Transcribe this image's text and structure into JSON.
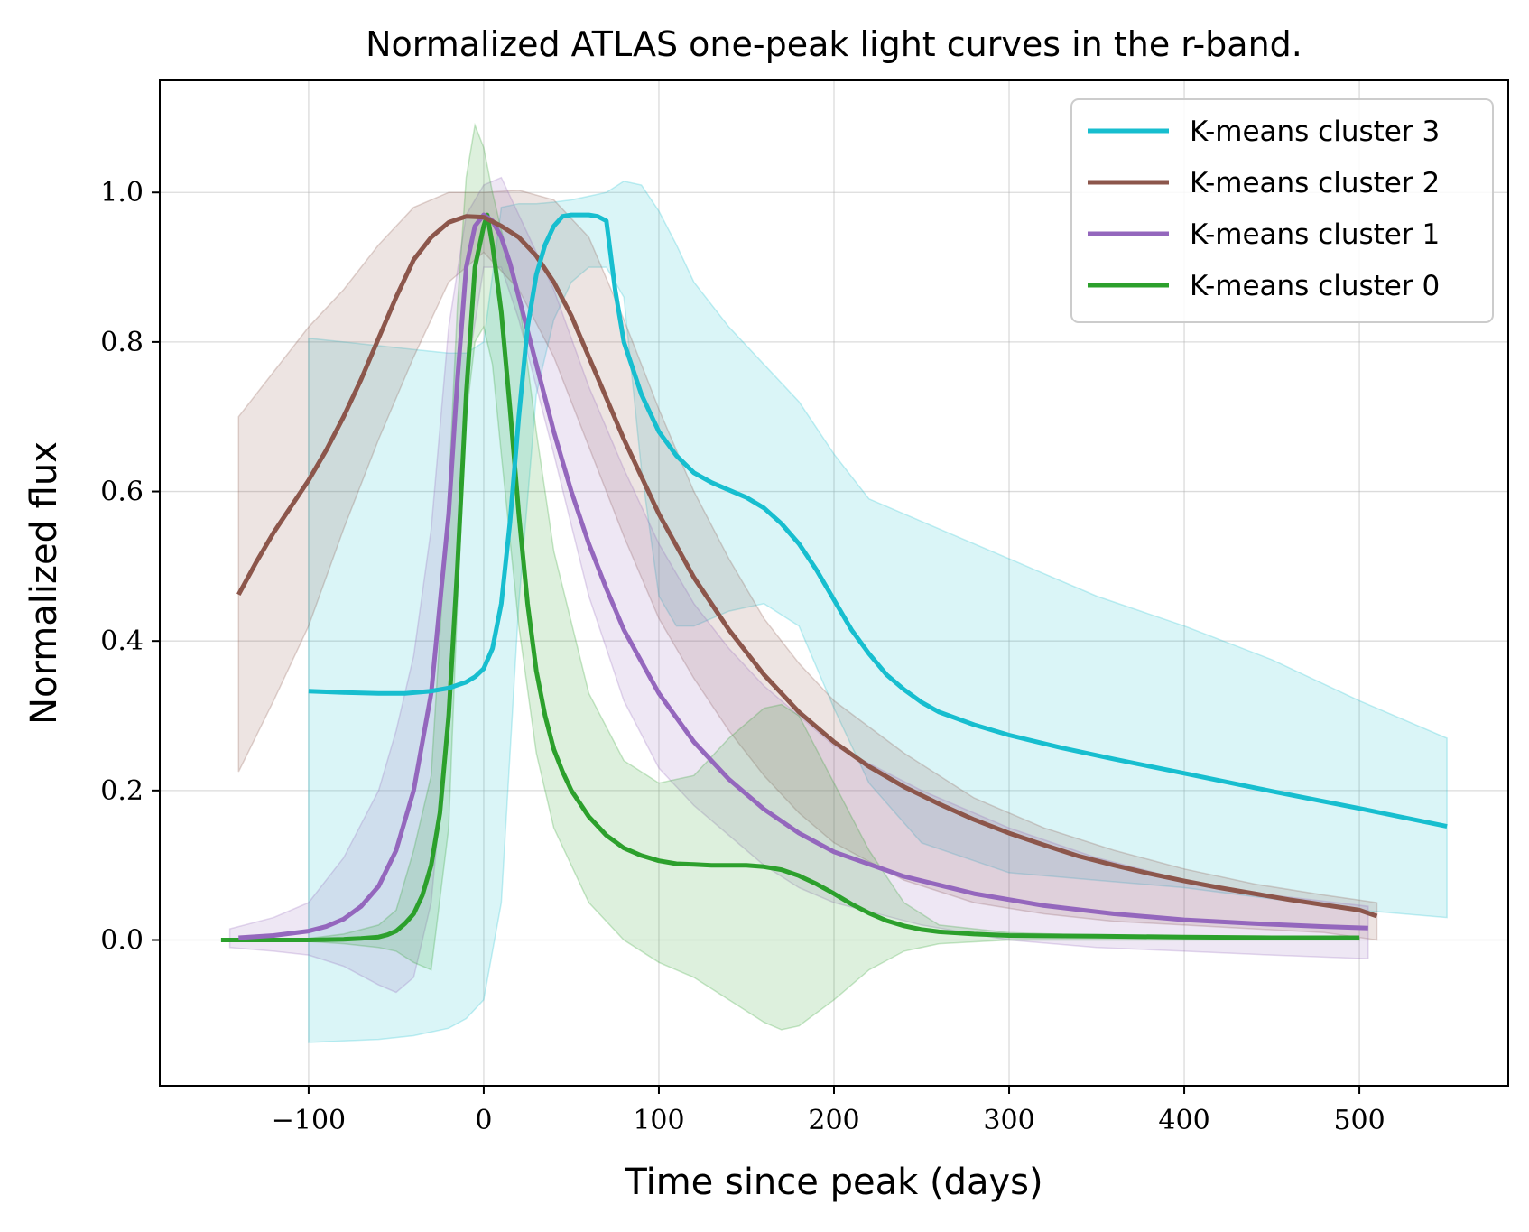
{
  "chart_data": {
    "type": "line",
    "title": "Normalized ATLAS one-peak light curves in the r-band.",
    "xlabel": "Time since peak (days)",
    "ylabel": "Normalized flux",
    "xlim": [
      -185,
      585
    ],
    "ylim": [
      -0.195,
      1.15
    ],
    "xticks": [
      -100,
      0,
      100,
      200,
      300,
      400,
      500
    ],
    "xtick_labels": [
      "−100",
      "0",
      "100",
      "200",
      "300",
      "400",
      "500"
    ],
    "yticks": [
      0.0,
      0.2,
      0.4,
      0.6,
      0.8,
      1.0
    ],
    "ytick_labels": [
      "0.0",
      "0.2",
      "0.4",
      "0.6",
      "0.8",
      "1.0"
    ],
    "grid": true,
    "legend_position": "top-right",
    "series": [
      {
        "name": "K-means cluster 3",
        "color": "#17becf",
        "x": [
          -100,
          -80,
          -60,
          -45,
          -30,
          -20,
          -10,
          -5,
          0,
          5,
          10,
          15,
          20,
          25,
          30,
          35,
          40,
          45,
          50,
          55,
          60,
          65,
          70,
          75,
          80,
          90,
          100,
          110,
          120,
          130,
          140,
          150,
          160,
          170,
          180,
          190,
          200,
          210,
          220,
          230,
          240,
          250,
          260,
          280,
          300,
          330,
          360,
          400,
          450,
          500,
          550
        ],
        "y": [
          0.333,
          0.331,
          0.33,
          0.33,
          0.333,
          0.337,
          0.345,
          0.352,
          0.363,
          0.39,
          0.45,
          0.56,
          0.7,
          0.82,
          0.89,
          0.93,
          0.955,
          0.968,
          0.97,
          0.97,
          0.97,
          0.968,
          0.962,
          0.87,
          0.8,
          0.73,
          0.68,
          0.648,
          0.625,
          0.612,
          0.602,
          0.592,
          0.578,
          0.557,
          0.53,
          0.495,
          0.455,
          0.415,
          0.383,
          0.355,
          0.335,
          0.318,
          0.305,
          0.288,
          0.274,
          0.257,
          0.242,
          0.223,
          0.199,
          0.176,
          0.152
        ],
        "band_x": [
          -100,
          -80,
          -60,
          -40,
          -20,
          -10,
          0,
          10,
          20,
          30,
          40,
          50,
          60,
          70,
          80,
          90,
          100,
          110,
          120,
          140,
          160,
          180,
          200,
          220,
          250,
          300,
          350,
          400,
          450,
          500,
          550
        ],
        "band_lo": [
          -0.137,
          -0.135,
          -0.133,
          -0.128,
          -0.118,
          -0.105,
          -0.08,
          0.05,
          0.45,
          0.73,
          0.83,
          0.88,
          0.9,
          0.9,
          0.86,
          0.63,
          0.46,
          0.42,
          0.42,
          0.44,
          0.45,
          0.42,
          0.31,
          0.21,
          0.13,
          0.09,
          0.08,
          0.07,
          0.055,
          0.04,
          0.03
        ],
        "band_hi": [
          0.805,
          0.8,
          0.795,
          0.79,
          0.785,
          0.785,
          0.8,
          0.98,
          0.985,
          0.985,
          0.987,
          0.99,
          0.995,
          1.0,
          1.015,
          1.01,
          0.975,
          0.93,
          0.88,
          0.82,
          0.77,
          0.72,
          0.65,
          0.59,
          0.56,
          0.51,
          0.46,
          0.42,
          0.375,
          0.32,
          0.27
        ]
      },
      {
        "name": "K-means cluster 2",
        "color": "#8c564b",
        "x": [
          -140,
          -130,
          -120,
          -110,
          -100,
          -90,
          -80,
          -70,
          -60,
          -50,
          -40,
          -30,
          -20,
          -10,
          0,
          10,
          20,
          30,
          40,
          50,
          60,
          70,
          80,
          100,
          120,
          140,
          160,
          180,
          200,
          220,
          240,
          260,
          280,
          300,
          320,
          340,
          360,
          380,
          400,
          420,
          440,
          460,
          480,
          500,
          510
        ],
        "y": [
          0.462,
          0.505,
          0.545,
          0.58,
          0.615,
          0.655,
          0.7,
          0.75,
          0.805,
          0.86,
          0.91,
          0.94,
          0.96,
          0.968,
          0.967,
          0.955,
          0.94,
          0.915,
          0.88,
          0.835,
          0.78,
          0.725,
          0.67,
          0.57,
          0.485,
          0.415,
          0.355,
          0.305,
          0.265,
          0.232,
          0.205,
          0.182,
          0.161,
          0.143,
          0.127,
          0.112,
          0.1,
          0.089,
          0.079,
          0.07,
          0.062,
          0.054,
          0.047,
          0.04,
          0.032
        ],
        "band_x": [
          -140,
          -120,
          -100,
          -80,
          -60,
          -40,
          -20,
          0,
          20,
          40,
          60,
          80,
          100,
          120,
          140,
          160,
          180,
          200,
          240,
          280,
          320,
          360,
          400,
          440,
          480,
          510
        ],
        "band_lo": [
          0.225,
          0.32,
          0.42,
          0.55,
          0.67,
          0.78,
          0.88,
          0.92,
          0.87,
          0.78,
          0.66,
          0.54,
          0.43,
          0.35,
          0.28,
          0.22,
          0.17,
          0.13,
          0.08,
          0.05,
          0.035,
          0.025,
          0.02,
          0.015,
          0.01,
          0.0
        ],
        "band_hi": [
          0.7,
          0.76,
          0.82,
          0.87,
          0.93,
          0.98,
          1.0,
          1.0,
          1.003,
          0.99,
          0.94,
          0.83,
          0.71,
          0.6,
          0.51,
          0.43,
          0.37,
          0.32,
          0.25,
          0.19,
          0.15,
          0.12,
          0.095,
          0.075,
          0.06,
          0.05
        ]
      },
      {
        "name": "K-means cluster 1",
        "color": "#9467bd",
        "x": [
          -140,
          -120,
          -100,
          -90,
          -80,
          -70,
          -60,
          -50,
          -40,
          -30,
          -20,
          -15,
          -10,
          -5,
          0,
          5,
          10,
          15,
          20,
          30,
          40,
          50,
          60,
          70,
          80,
          100,
          120,
          140,
          160,
          180,
          200,
          240,
          280,
          320,
          360,
          400,
          440,
          480,
          505
        ],
        "y": [
          0.003,
          0.006,
          0.012,
          0.018,
          0.028,
          0.045,
          0.072,
          0.12,
          0.2,
          0.33,
          0.57,
          0.75,
          0.9,
          0.955,
          0.97,
          0.962,
          0.94,
          0.905,
          0.86,
          0.77,
          0.68,
          0.6,
          0.53,
          0.47,
          0.415,
          0.33,
          0.265,
          0.215,
          0.175,
          0.143,
          0.118,
          0.085,
          0.062,
          0.046,
          0.035,
          0.027,
          0.022,
          0.018,
          0.016
        ],
        "band_x": [
          -145,
          -120,
          -100,
          -80,
          -60,
          -50,
          -40,
          -30,
          -20,
          -10,
          0,
          10,
          20,
          40,
          60,
          80,
          100,
          120,
          140,
          160,
          180,
          200,
          250,
          300,
          350,
          400,
          450,
          505
        ],
        "band_lo": [
          -0.01,
          -0.015,
          -0.02,
          -0.035,
          -0.06,
          -0.07,
          -0.05,
          0.05,
          0.3,
          0.75,
          0.9,
          0.9,
          0.83,
          0.65,
          0.46,
          0.32,
          0.23,
          0.18,
          0.14,
          0.1,
          0.07,
          0.05,
          0.02,
          0.0,
          -0.01,
          -0.015,
          -0.02,
          -0.025
        ],
        "band_hi": [
          0.015,
          0.03,
          0.05,
          0.11,
          0.2,
          0.28,
          0.38,
          0.55,
          0.82,
          0.97,
          1.01,
          1.02,
          0.97,
          0.87,
          0.74,
          0.63,
          0.53,
          0.45,
          0.39,
          0.34,
          0.3,
          0.26,
          0.2,
          0.15,
          0.11,
          0.08,
          0.06,
          0.045
        ]
      },
      {
        "name": "K-means cluster 0",
        "color": "#2ca02c",
        "x": [
          -150,
          -120,
          -100,
          -80,
          -70,
          -60,
          -55,
          -50,
          -45,
          -40,
          -35,
          -30,
          -25,
          -20,
          -15,
          -10,
          -5,
          0,
          2,
          5,
          10,
          15,
          20,
          25,
          30,
          35,
          40,
          45,
          50,
          60,
          70,
          80,
          90,
          100,
          110,
          120,
          130,
          140,
          150,
          160,
          170,
          180,
          190,
          200,
          210,
          220,
          230,
          240,
          250,
          260,
          280,
          300,
          350,
          400,
          450,
          500
        ],
        "y": [
          0.0,
          0.0,
          0.0,
          0.001,
          0.002,
          0.004,
          0.007,
          0.012,
          0.022,
          0.035,
          0.06,
          0.1,
          0.17,
          0.3,
          0.5,
          0.73,
          0.9,
          0.955,
          0.97,
          0.93,
          0.84,
          0.71,
          0.57,
          0.45,
          0.36,
          0.3,
          0.255,
          0.225,
          0.2,
          0.165,
          0.14,
          0.123,
          0.113,
          0.106,
          0.102,
          0.101,
          0.1,
          0.1,
          0.1,
          0.098,
          0.094,
          0.086,
          0.075,
          0.062,
          0.048,
          0.036,
          0.026,
          0.019,
          0.014,
          0.011,
          0.008,
          0.006,
          0.005,
          0.004,
          0.003,
          0.003
        ],
        "band_x": [
          -150,
          -120,
          -100,
          -80,
          -60,
          -50,
          -40,
          -30,
          -20,
          -15,
          -10,
          -5,
          0,
          5,
          10,
          20,
          30,
          40,
          60,
          80,
          100,
          120,
          140,
          160,
          170,
          180,
          200,
          220,
          240,
          260,
          300,
          350,
          400,
          500
        ],
        "band_lo": [
          0.0,
          0.0,
          -0.002,
          -0.005,
          -0.01,
          -0.015,
          -0.03,
          -0.04,
          0.15,
          0.45,
          0.7,
          0.8,
          0.82,
          0.77,
          0.65,
          0.42,
          0.25,
          0.15,
          0.05,
          -0.0,
          -0.03,
          -0.05,
          -0.08,
          -0.11,
          -0.12,
          -0.115,
          -0.08,
          -0.04,
          -0.015,
          -0.005,
          0.0,
          0.0,
          0.0,
          0.0
        ],
        "band_hi": [
          0.0,
          0.0,
          0.002,
          0.008,
          0.02,
          0.04,
          0.12,
          0.22,
          0.6,
          0.85,
          1.02,
          1.09,
          1.06,
          1.0,
          0.95,
          0.86,
          0.68,
          0.52,
          0.33,
          0.24,
          0.21,
          0.22,
          0.27,
          0.31,
          0.315,
          0.3,
          0.21,
          0.12,
          0.05,
          0.02,
          0.01,
          0.006,
          0.004,
          0.002
        ]
      }
    ]
  }
}
